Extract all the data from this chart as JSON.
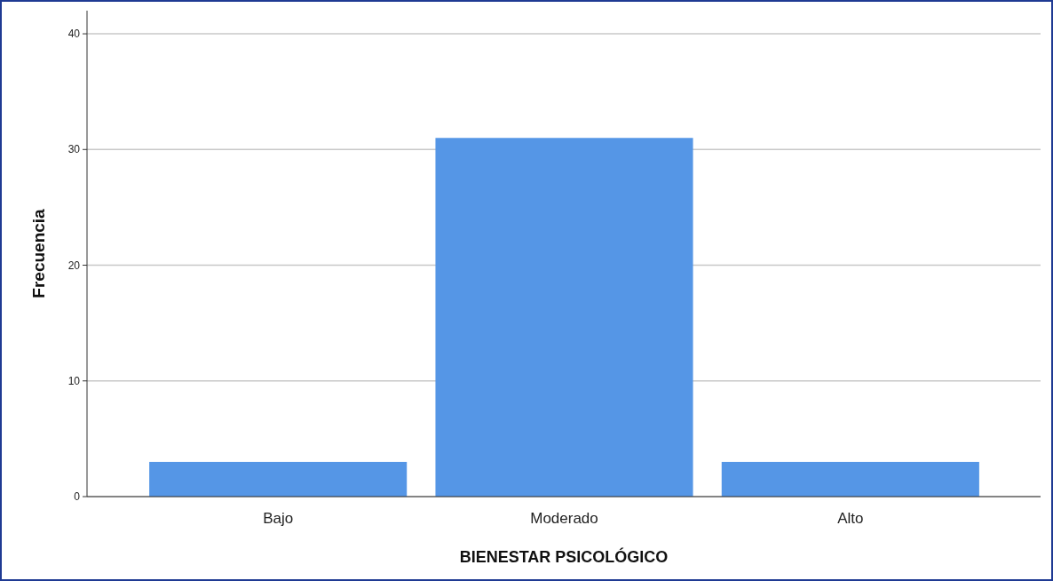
{
  "chart_data": {
    "type": "bar",
    "xlabel": "BIENESTAR PSICOLÓGICO",
    "ylabel": "Frecuencia",
    "categories": [
      "Bajo",
      "Moderado",
      "Alto"
    ],
    "values": [
      3,
      31,
      3
    ],
    "color": "#5596e6",
    "ylim": [
      0,
      42
    ],
    "yticks": [
      0,
      10,
      20,
      30,
      40
    ],
    "grid": "y"
  }
}
